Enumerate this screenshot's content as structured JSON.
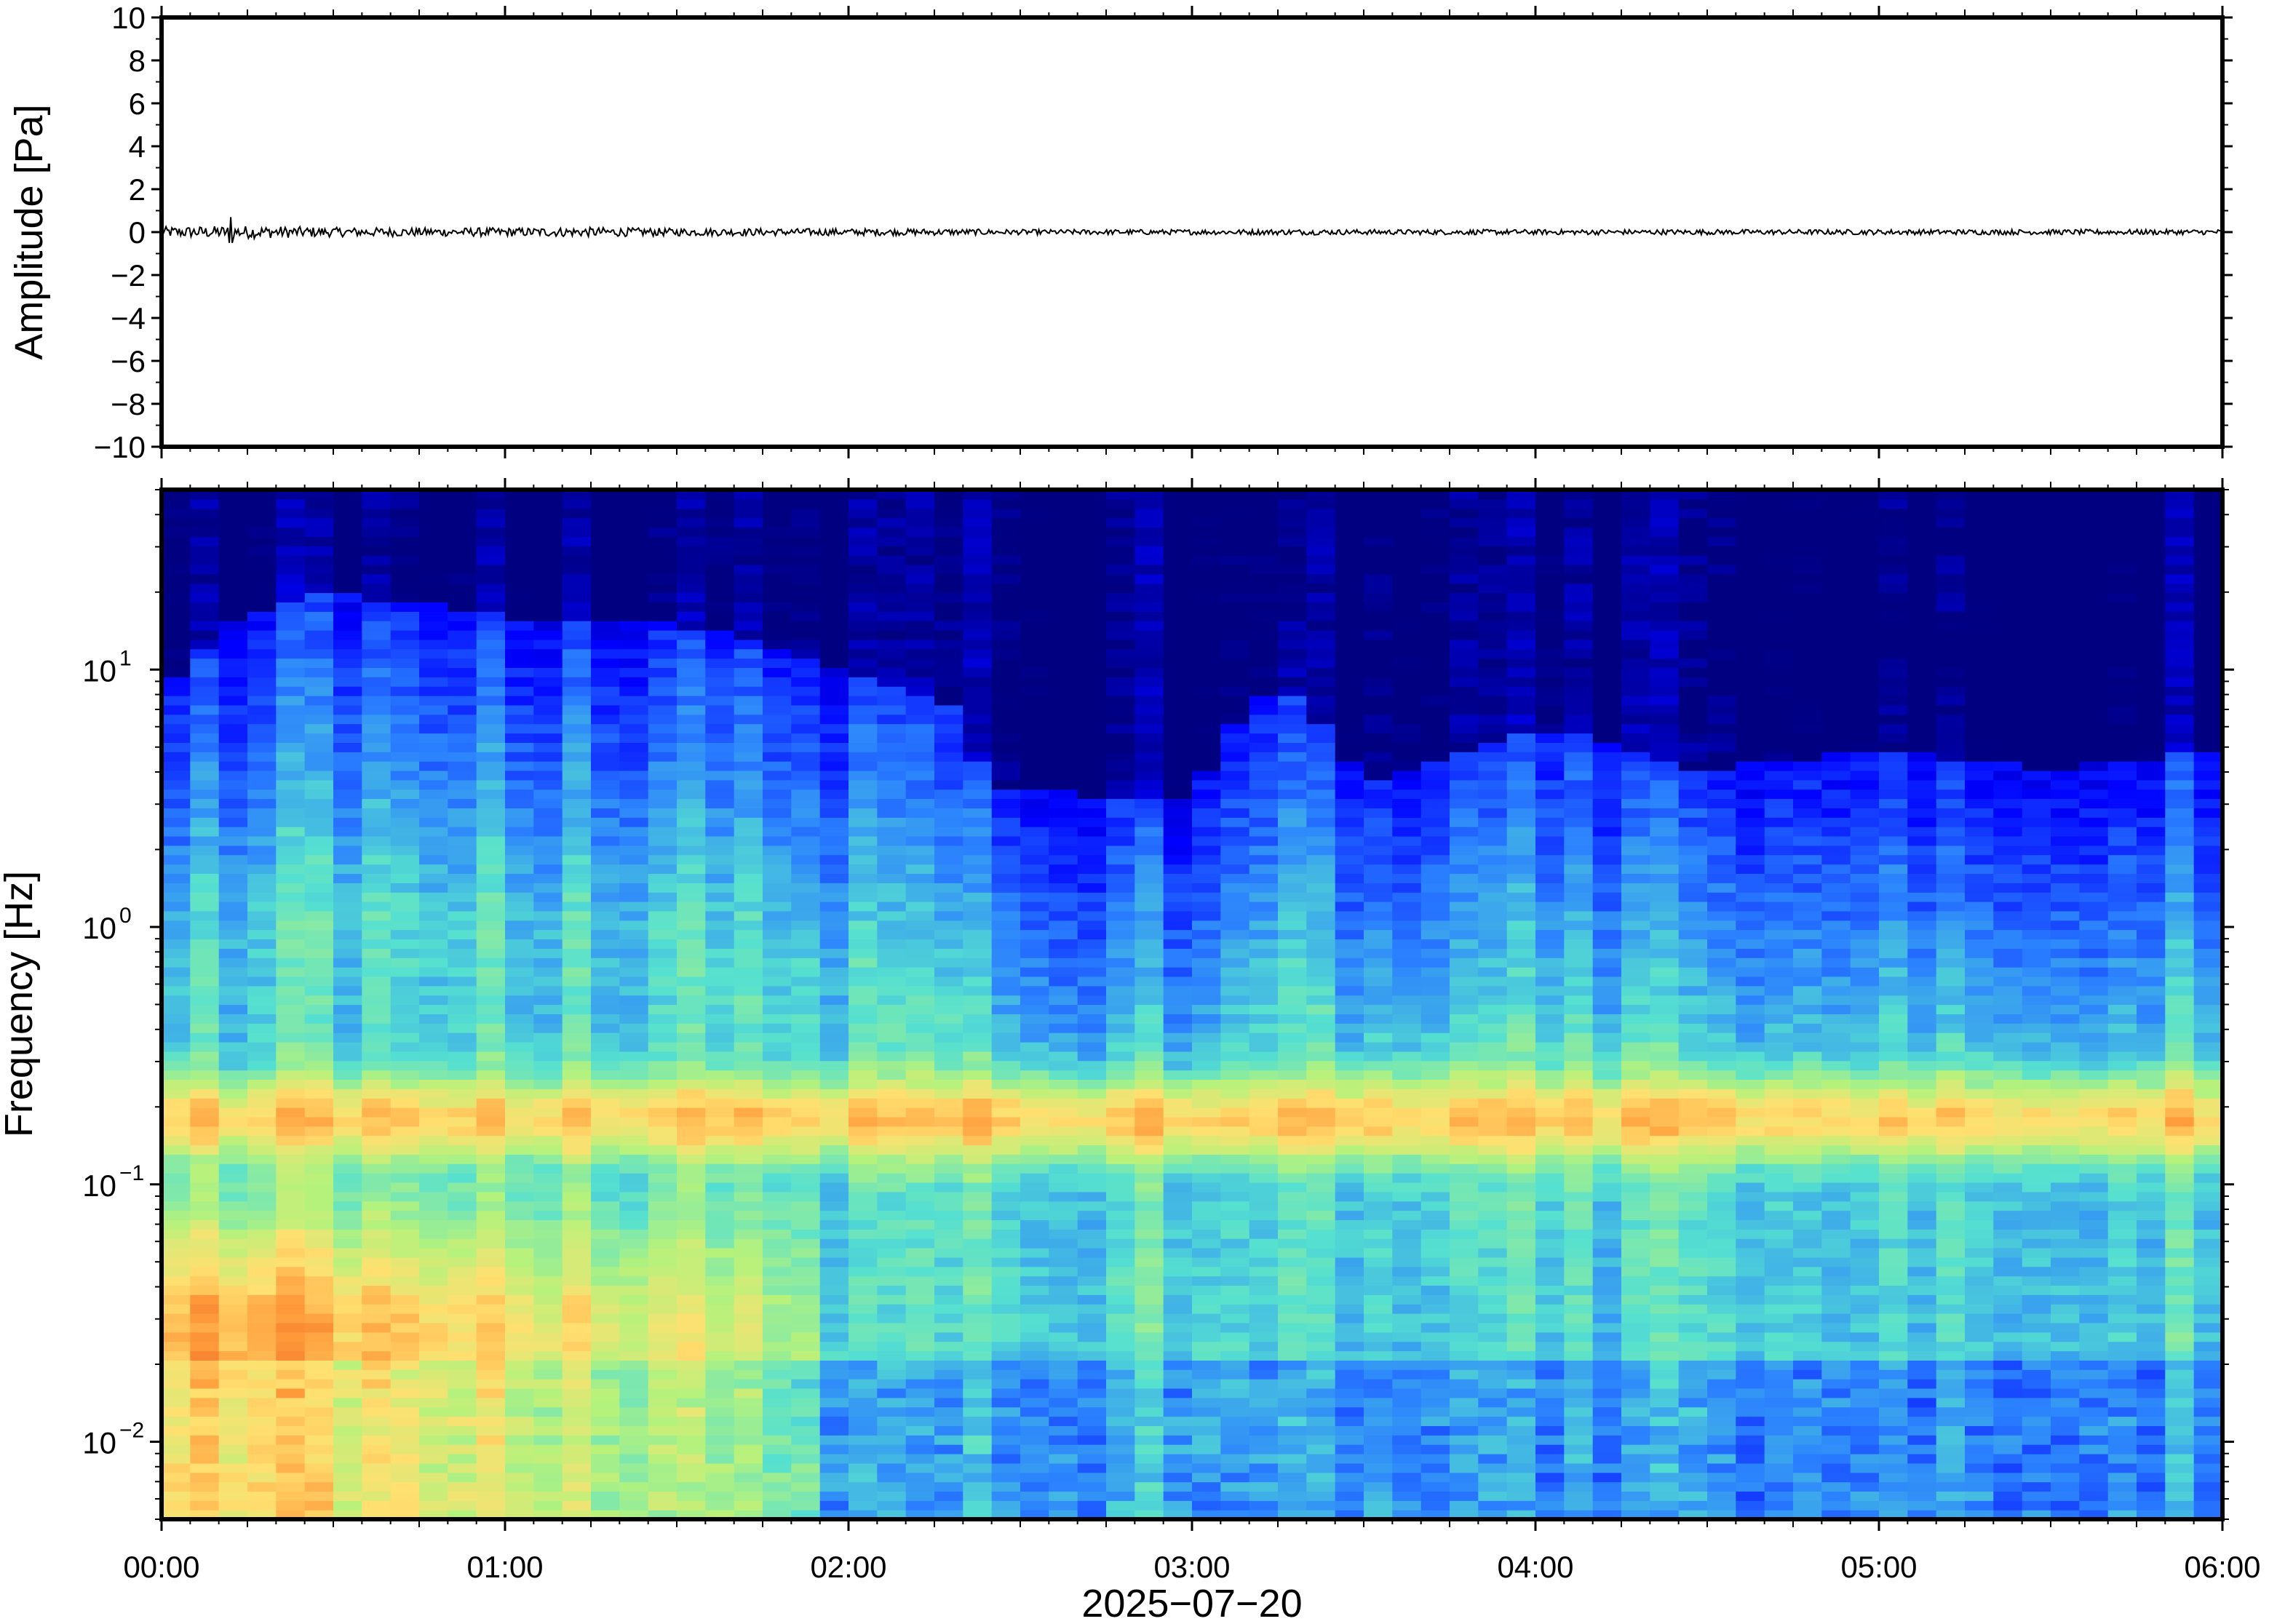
{
  "chart_data": [
    {
      "type": "line",
      "panel": "waveform",
      "ylabel": "Amplitude [Pa]",
      "ylim": [
        -10,
        10
      ],
      "yticks": [
        10,
        8,
        6,
        4,
        2,
        0,
        -2,
        -4,
        -6,
        -8,
        -10
      ],
      "ytick_labels": [
        "10",
        "8",
        "6",
        "4",
        "2",
        "0",
        "−2",
        "−4",
        "−6",
        "−8",
        "−10"
      ],
      "xlim": [
        "00:00",
        "06:00"
      ],
      "series": [
        {
          "values_description_note": "",
          "x_hours": [
            0.0,
            0.25,
            0.5,
            0.75,
            1.0,
            1.25,
            1.5,
            1.75,
            2.0,
            2.25,
            2.5,
            2.75,
            3.0,
            3.25,
            3.5,
            3.75,
            4.0,
            4.25,
            4.5,
            4.75,
            5.0,
            5.25,
            5.5,
            5.75,
            6.0
          ],
          "noise_amplitude_pa": [
            0.25,
            0.3,
            0.22,
            0.2,
            0.2,
            0.22,
            0.18,
            0.17,
            0.16,
            0.15,
            0.12,
            0.12,
            0.12,
            0.13,
            0.12,
            0.12,
            0.12,
            0.12,
            0.12,
            0.12,
            0.12,
            0.12,
            0.12,
            0.12,
            0.12
          ],
          "spike": {
            "x_hours": 0.2,
            "max": 0.7,
            "min": -0.5
          }
        }
      ],
      "color": "#000000"
    },
    {
      "type": "heatmap",
      "panel": "spectrogram",
      "ylabel": "Frequency [Hz]",
      "yscale": "log",
      "ylim": [
        0.005,
        50
      ],
      "yticks": [
        0.01,
        0.1,
        1,
        10
      ],
      "ytick_labels": [
        {
          "base": "10",
          "exp": "−2"
        },
        {
          "base": "10",
          "exp": "−1"
        },
        {
          "base": "10",
          "exp": "0"
        },
        {
          "base": "10",
          "exp": "1"
        }
      ],
      "xlabel": "2025−07−20",
      "xlim": [
        "00:00",
        "06:00"
      ],
      "xtick_labels": [
        "00:00",
        "01:00",
        "02:00",
        "03:00",
        "04:00",
        "05:00",
        "06:00"
      ],
      "colormap": "jet",
      "colors": [
        "#000080",
        "#0000ff",
        "#2a7fff",
        "#55e0d0",
        "#b5f27c",
        "#ffe070",
        "#ff9a3a",
        "#e05020"
      ],
      "microseism_peak_hz": 0.18,
      "upper_energy_edge_hz": {
        "x_hours": [
          0.0,
          0.2,
          0.5,
          1.0,
          1.5,
          2.0,
          2.3,
          2.4,
          3.0,
          3.25,
          3.5,
          4.0,
          4.5,
          5.0,
          5.5,
          6.0
        ],
        "hz": [
          8,
          15,
          20,
          16,
          15,
          10,
          7,
          3.5,
          3,
          9,
          3.5,
          6,
          4,
          5,
          4,
          5
        ]
      },
      "low_freq_level": {
        "x_hours": [
          0.0,
          0.25,
          0.5,
          1.0,
          1.5,
          1.9,
          2.0,
          2.5,
          3.0,
          3.5,
          4.0,
          4.5,
          5.0,
          5.5,
          6.0
        ],
        "level": [
          0.8,
          0.85,
          0.78,
          0.72,
          0.65,
          0.55,
          0.4,
          0.42,
          0.45,
          0.4,
          0.4,
          0.42,
          0.42,
          0.42,
          0.42
        ]
      }
    }
  ]
}
